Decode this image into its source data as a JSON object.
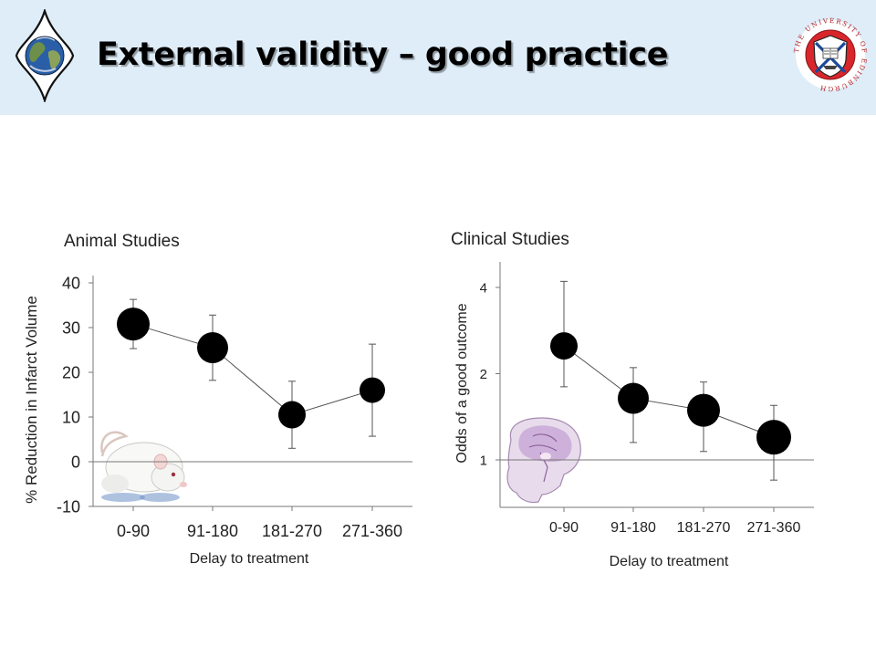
{
  "slide": {
    "title": "External validity – good practice"
  },
  "logos": {
    "left": "earth-globe-logo",
    "right": "university-of-edinburgh-crest",
    "right_ring_text": "THE UNIVERSITY OF EDINBURGH",
    "crest_red": "#d8262b"
  },
  "icons": {
    "animal_chart": "white-rat-photo",
    "clinical_chart": "brain-mri-sagittal"
  },
  "chart_data": [
    {
      "type": "line",
      "title": "Animal Studies",
      "xlabel": "Delay to treatment",
      "ylabel": "% Reduction in Infarct Volume",
      "categories": [
        "0-90",
        "91-180",
        "181-270",
        "271-360"
      ],
      "values": [
        30.8,
        25.5,
        10.5,
        16.0
      ],
      "error_upper": [
        36.3,
        32.8,
        18.0,
        26.3
      ],
      "error_lower": [
        25.3,
        18.2,
        3.0,
        5.7
      ],
      "ylim": [
        -10,
        40
      ],
      "yticks": [
        "-10",
        "0",
        "10",
        "20",
        "30",
        "40"
      ],
      "reference_line": 0,
      "grid": false
    },
    {
      "type": "line",
      "title": "Clinical Studies",
      "xlabel": "Delay to treatment",
      "ylabel": "Odds of a good outcome",
      "y_scale": "log",
      "categories": [
        "0-90",
        "91-180",
        "181-270",
        "271-360"
      ],
      "values": [
        2.5,
        1.64,
        1.49,
        1.2
      ],
      "error_upper": [
        4.2,
        2.1,
        1.87,
        1.55
      ],
      "error_lower": [
        1.8,
        1.15,
        1.07,
        0.85
      ],
      "yticks": [
        "1",
        "2",
        "4"
      ],
      "reference_line": 1,
      "grid": false
    }
  ]
}
